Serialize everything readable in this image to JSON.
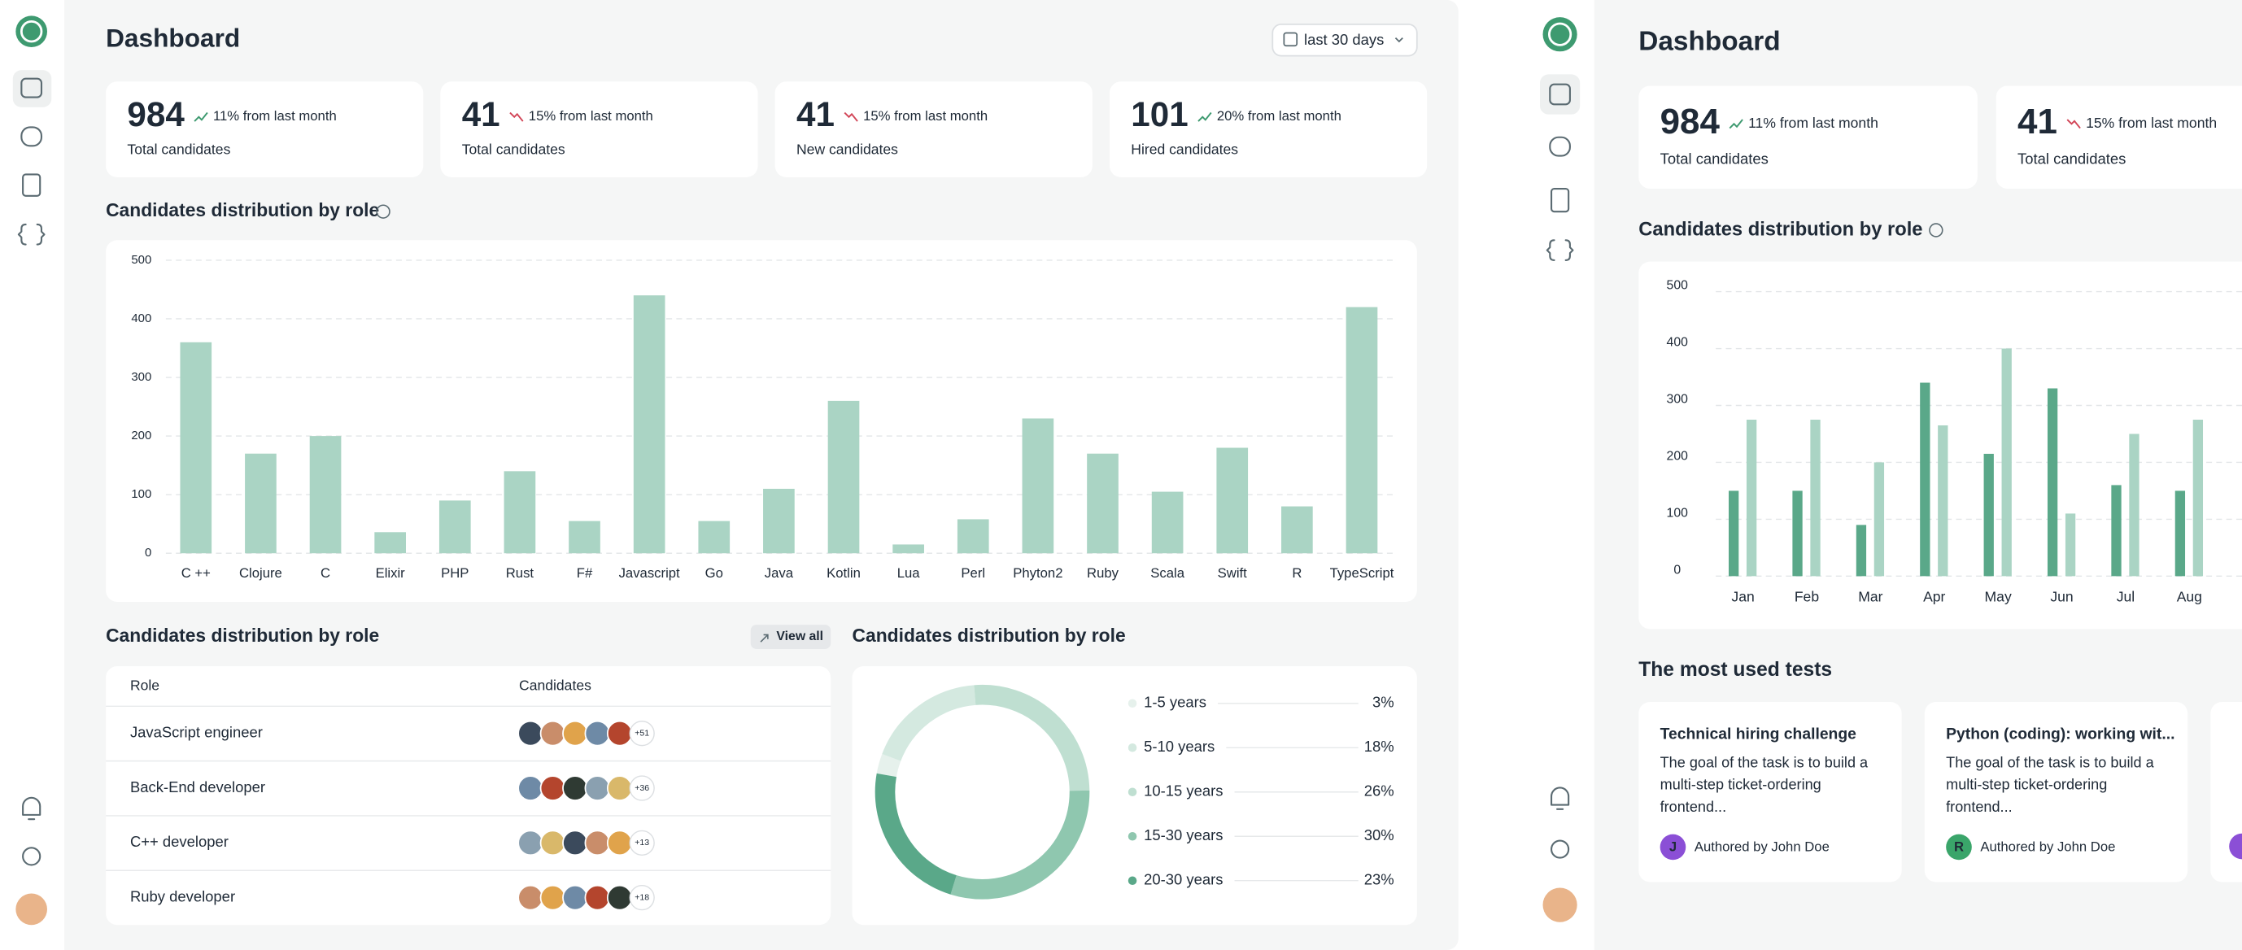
{
  "left": {
    "title": "Dashboard",
    "date_filter": "last 30 days",
    "stats": [
      {
        "value": 984,
        "change": "11% from last month",
        "label": "Total candidates",
        "color": "#3e9a70"
      },
      {
        "value": 41,
        "change": "15% from last month",
        "label": "Total candidates",
        "color": "#d24557"
      },
      {
        "value": 41,
        "change": "15% from last month",
        "label": "New candidates",
        "color": "#d24557"
      },
      {
        "value": 101,
        "change": "20% from last month",
        "label": "Hired candidates",
        "color": "#3e9a70"
      }
    ],
    "bar_chart": {
      "type": "bar",
      "title": "Candidates distribution by role",
      "categories": [
        "C ++",
        "Clojure",
        "C",
        "Elixir",
        "PHP",
        "Rust",
        "F#",
        "Javascript",
        "Go",
        "Java",
        "Kotlin",
        "Lua",
        "Perl",
        "Phyton2",
        "Ruby",
        "Scala",
        "Swift",
        "R",
        "TypeScript"
      ],
      "values": [
        360,
        170,
        200,
        36,
        90,
        140,
        55,
        440,
        55,
        110,
        260,
        15,
        58,
        230,
        170,
        105,
        180,
        80,
        420
      ],
      "color": "#aad4c4",
      "ylim": [
        0,
        500
      ],
      "yticks": [
        0,
        100,
        200,
        300,
        400,
        500
      ],
      "grid": true
    },
    "table": {
      "title": "Candidates distribution by role",
      "button": "View all",
      "columns": [
        "Role",
        "Candidates"
      ],
      "rows": [
        {
          "role": "JavaScript engineer",
          "more": "+51"
        },
        {
          "role": "Back-End developer",
          "more": "+36"
        },
        {
          "role": "C++ developer",
          "more": "+13"
        },
        {
          "role": "Ruby developer",
          "more": "+18"
        }
      ]
    },
    "donut": {
      "type": "pie",
      "title": "Candidates distribution by role",
      "categories": [
        "1-5 years",
        "5-10 years",
        "10-15 years",
        "15-30 years",
        "20-30 years"
      ],
      "values": [
        3,
        18,
        26,
        30,
        23
      ],
      "value_labels": [
        "3%",
        "18%",
        "26%",
        "30%",
        "23%"
      ],
      "colors": [
        "#e6f1ec",
        "#d4e9e0",
        "#bfdfd1",
        "#8fc7af",
        "#5aa889"
      ]
    }
  },
  "right": {
    "title": "Dashboard",
    "stats": [
      {
        "value": 984,
        "change": "11% from last month",
        "label": "Total candidates",
        "color": "#3e9a70"
      },
      {
        "value": 41,
        "change": "15% from last month",
        "label": "Total candidates",
        "color": "#d24557"
      }
    ],
    "bar_chart": {
      "type": "bar",
      "title": "Candidates distribution by role",
      "categories": [
        "Jan",
        "Feb",
        "Mar",
        "Apr",
        "May",
        "Jun",
        "Jul",
        "Aug"
      ],
      "series": [
        {
          "color": "#5aa889",
          "values": [
            150,
            150,
            90,
            340,
            215,
            330,
            160,
            150
          ]
        },
        {
          "color": "#aad4c4",
          "values": [
            275,
            275,
            200,
            265,
            400,
            110,
            250,
            275
          ]
        }
      ],
      "ylim": [
        0,
        500
      ],
      "yticks": [
        0,
        100,
        200,
        300,
        400,
        500
      ],
      "grid": true
    },
    "tests": {
      "title": "The most used tests",
      "cards": [
        {
          "title": "Technical hiring challenge",
          "description": [
            "The goal of the task is to build a",
            "multi-step ticket-ordering",
            "frontend..."
          ],
          "initial": "J",
          "author": "Authored by John Doe",
          "color": "#8b4fd6"
        },
        {
          "title": "Python (coding): working wit...",
          "description": [
            "The goal of the task is to build a",
            "multi-step ticket-ordering",
            "frontend..."
          ],
          "initial": "R",
          "author": "Authored by John Doe",
          "color": "#3aa56a"
        }
      ]
    }
  }
}
